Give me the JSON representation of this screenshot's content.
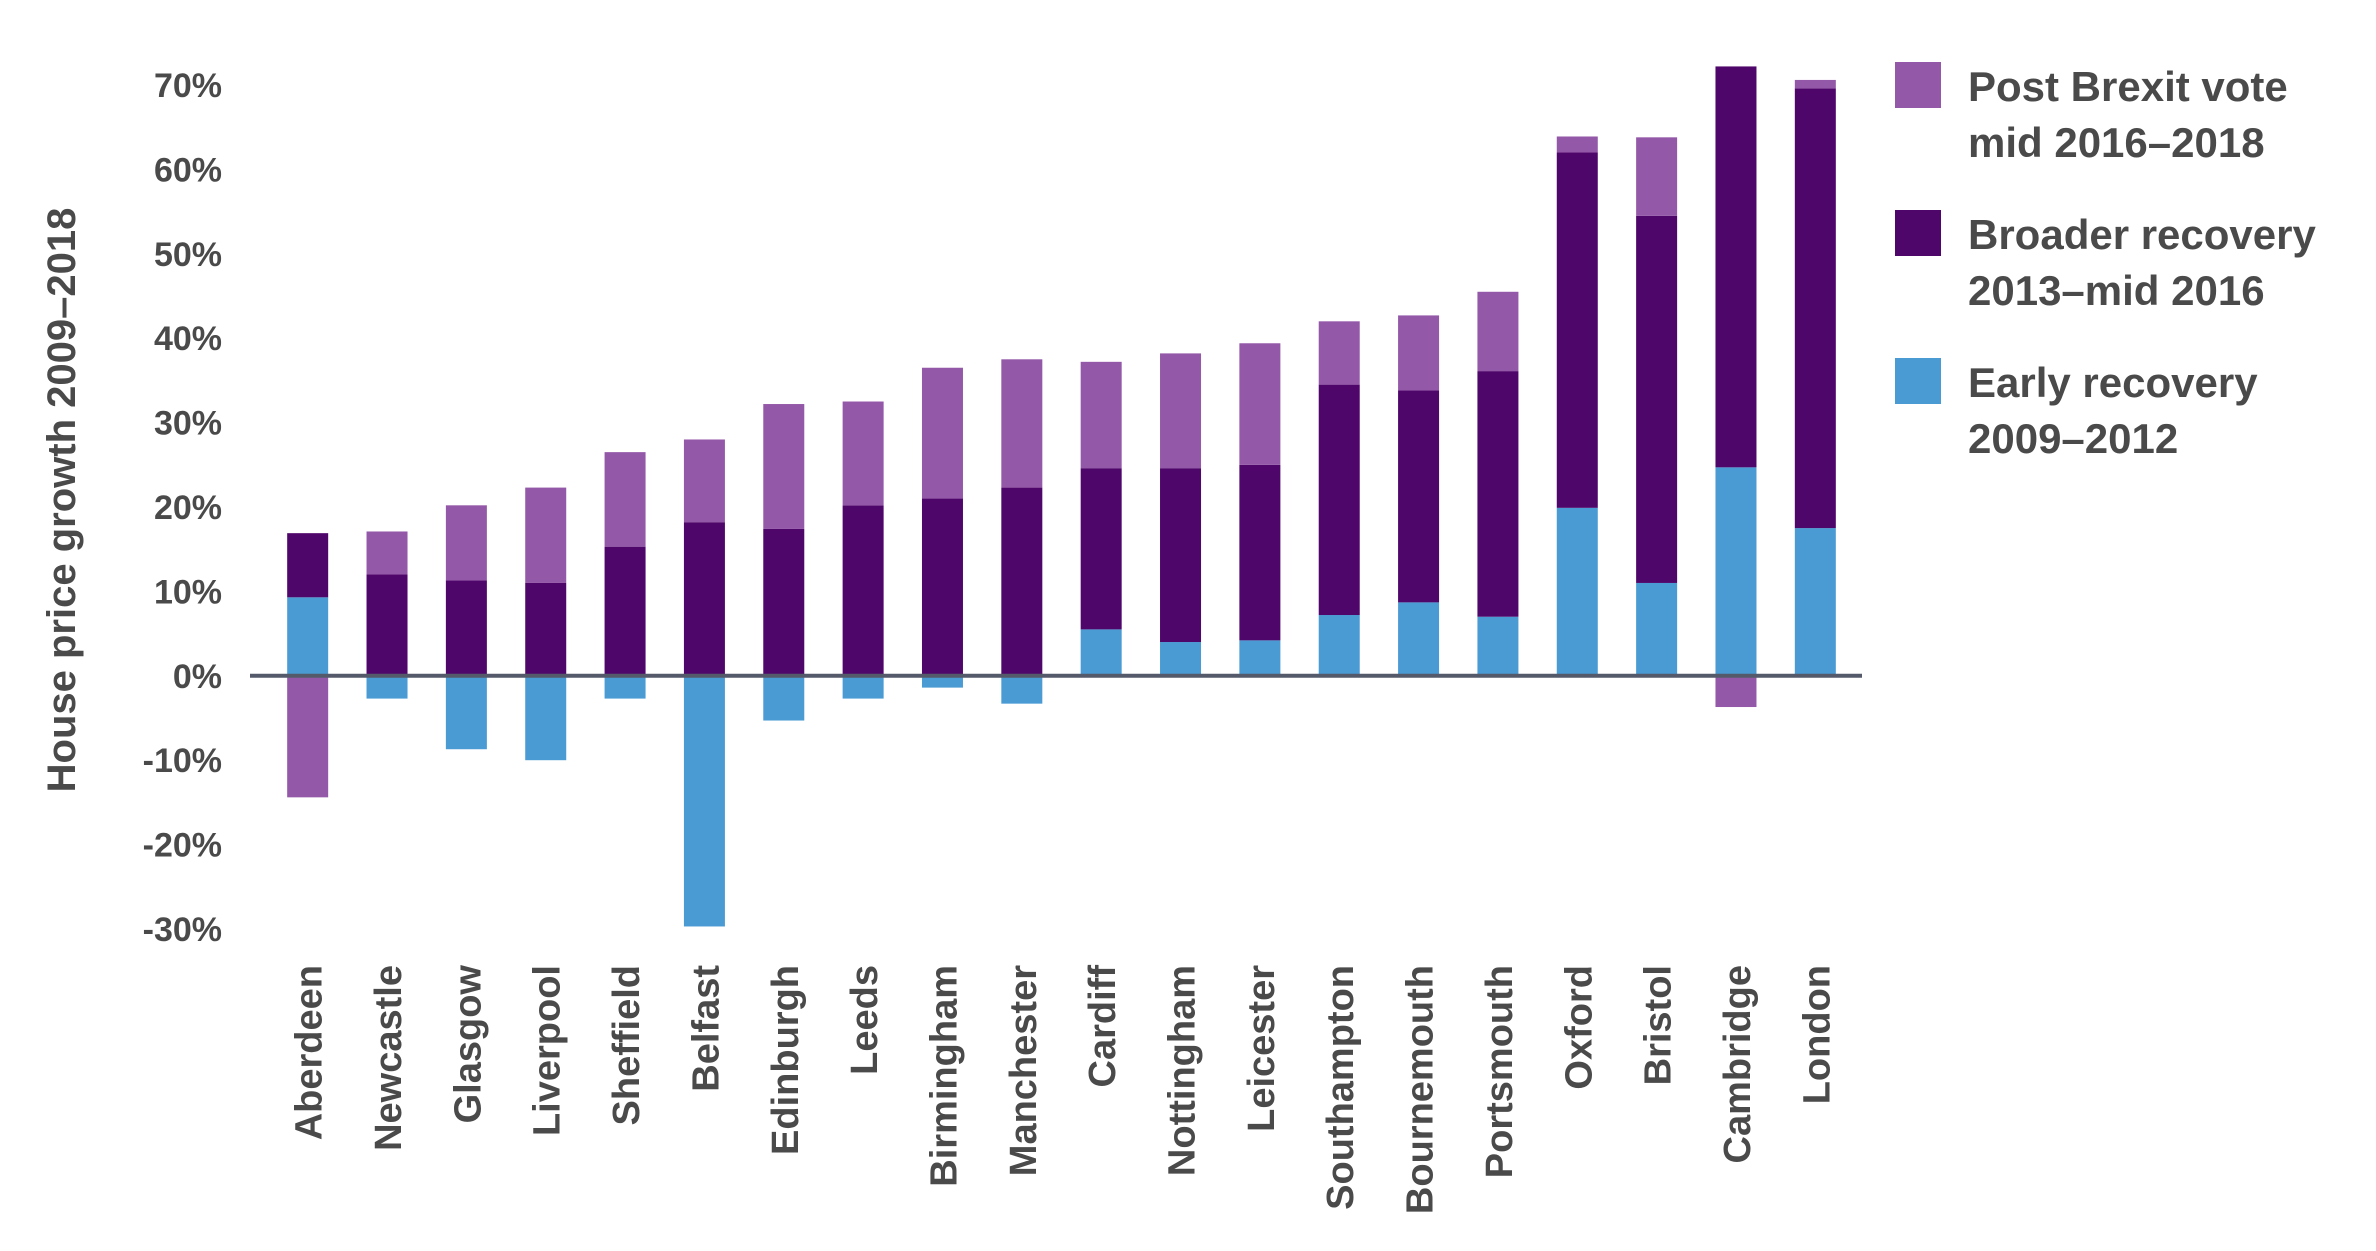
{
  "chart_data": {
    "type": "bar",
    "stacked": true,
    "ylabel": "House price growth 2009–2018",
    "ylim": [
      -30,
      70
    ],
    "yticks": [
      -30,
      -20,
      -10,
      0,
      10,
      20,
      30,
      40,
      50,
      60,
      70
    ],
    "ytick_labels": [
      "-30%",
      "-20%",
      "-10%",
      "0%",
      "10%",
      "20%",
      "30%",
      "40%",
      "50%",
      "60%",
      "70%"
    ],
    "grid": false,
    "legend_position": "top-right",
    "categories": [
      "Aberdeen",
      "Newcastle",
      "Glasgow",
      "Liverpool",
      "Sheffield",
      "Belfast",
      "Edinburgh",
      "Leeds",
      "Birmingham",
      "Manchester",
      "Cardiff",
      "Nottingham",
      "Leicester",
      "Southampton",
      "Bournemouth",
      "Portsmouth",
      "Oxford",
      "Bristol",
      "Cambridge",
      "London"
    ],
    "series": [
      {
        "name": "Early recovery",
        "name_line2": "2009–2012",
        "color": "#4a9bd4",
        "values": [
          9.3,
          -2.7,
          -8.7,
          -10.0,
          -2.7,
          -29.7,
          -5.3,
          -2.7,
          -1.4,
          -3.3,
          5.5,
          4.0,
          4.2,
          7.2,
          8.7,
          7.0,
          19.9,
          11.0,
          24.7,
          17.5
        ]
      },
      {
        "name": "Broader recovery",
        "name_line2": "2013–mid 2016",
        "color": "#4f066a",
        "values": [
          7.6,
          12.0,
          11.3,
          11.0,
          15.3,
          18.2,
          17.4,
          20.2,
          21.0,
          22.3,
          19.1,
          20.6,
          20.8,
          27.3,
          25.1,
          29.1,
          42.1,
          43.5,
          47.5,
          52.1
        ]
      },
      {
        "name": "Post Brexit vote",
        "name_line2": "mid 2016–2018",
        "color": "#9458a8",
        "values": [
          -14.4,
          5.1,
          8.9,
          11.3,
          11.2,
          9.8,
          14.8,
          12.3,
          15.5,
          15.2,
          12.6,
          13.6,
          14.4,
          7.5,
          8.9,
          9.4,
          1.9,
          9.3,
          -3.7,
          1.0
        ]
      }
    ]
  }
}
